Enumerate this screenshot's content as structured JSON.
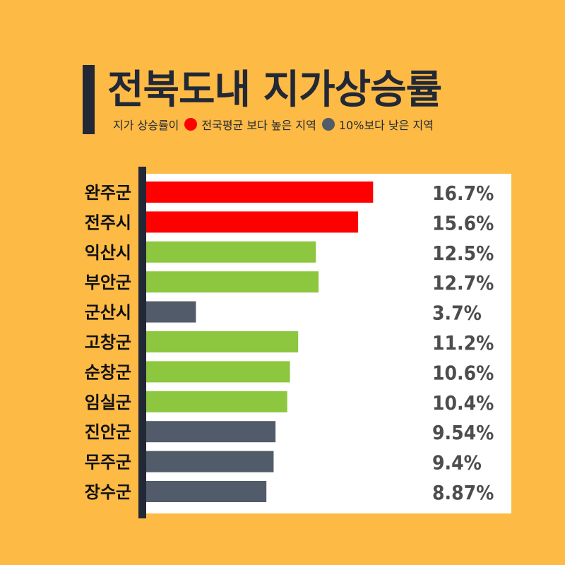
{
  "title": "전북도내 지가상승률",
  "legend": {
    "prefix": "지가 상승률이",
    "items": [
      {
        "label": "전국평균 보다 높은 지역",
        "color": "#FF0000"
      },
      {
        "label": "10%보다 낮은 지역",
        "color": "#515B6A"
      }
    ]
  },
  "colors": {
    "above_average": "#FF0000",
    "between": "#8DC63F",
    "below_10": "#515B6A",
    "background": "#FDBA45",
    "axis": "#222836"
  },
  "chart_data": {
    "type": "bar",
    "orientation": "horizontal",
    "title": "전북도내 지가상승률",
    "categories": [
      "완주군",
      "전주시",
      "익산시",
      "부안군",
      "군산시",
      "고창군",
      "순창군",
      "임실군",
      "진안군",
      "무주군",
      "장수군"
    ],
    "values": [
      16.7,
      15.6,
      12.5,
      12.7,
      3.7,
      11.2,
      10.6,
      10.4,
      9.54,
      9.4,
      8.87
    ],
    "value_labels": [
      "16.7%",
      "15.6%",
      "12.5%",
      "12.7%",
      "3.7%",
      "11.2%",
      "10.6%",
      "10.4%",
      "9.54%",
      "9.4%",
      "8.87%"
    ],
    "bar_groups": [
      "above_average",
      "above_average",
      "between",
      "between",
      "below_10",
      "between",
      "between",
      "between",
      "below_10",
      "below_10",
      "below_10"
    ],
    "unit": "%",
    "xlim": [
      0,
      29
    ],
    "grid": false
  }
}
